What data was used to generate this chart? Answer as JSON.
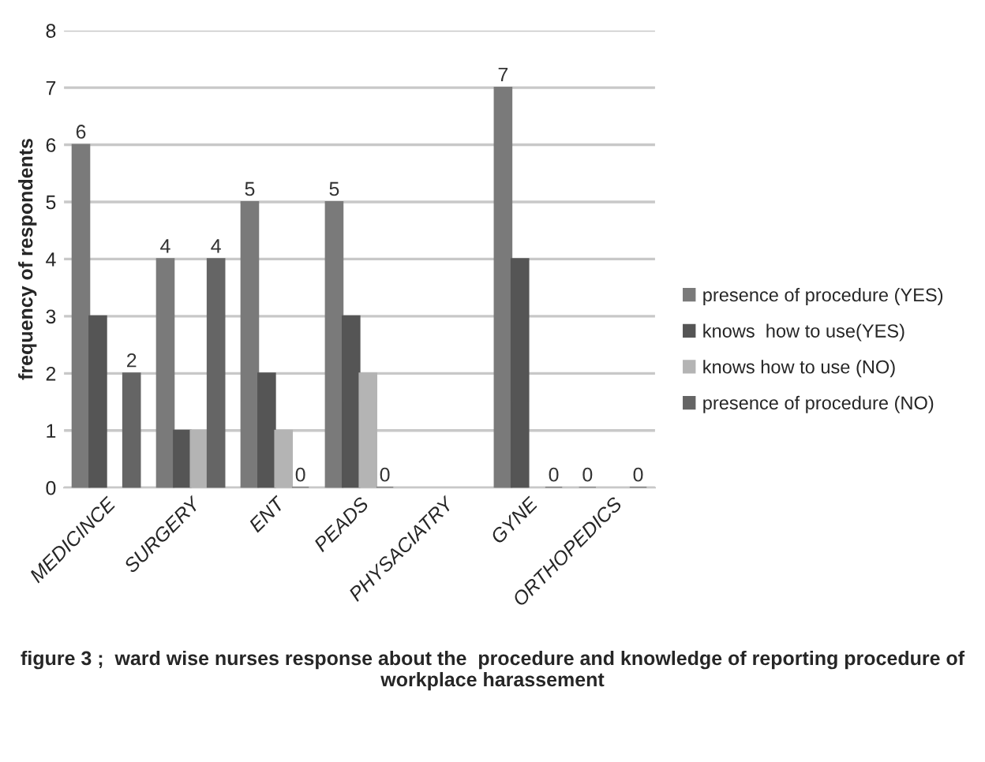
{
  "chart_data": {
    "type": "bar",
    "ylabel": "frequency of respondents",
    "categories": [
      "MEDICINCE",
      "SURGERY",
      "ENT",
      "PEADS",
      "PHYSACIATRY",
      "GYNE",
      "ORTHOPEDICS"
    ],
    "series": [
      {
        "name": "presence of procedure (YES)",
        "color": "#7a7a7a",
        "values": [
          6,
          4,
          5,
          5,
          null,
          7,
          0
        ],
        "value_labels": [
          "6",
          "4",
          "5",
          "5",
          null,
          "7",
          "0"
        ]
      },
      {
        "name": "knows  how to use(YES)",
        "color": "#555555",
        "values": [
          3,
          1,
          2,
          3,
          null,
          4,
          null
        ]
      },
      {
        "name": "knows how to use (NO)",
        "color": "#b4b4b4",
        "values": [
          null,
          1,
          1,
          2,
          null,
          null,
          null
        ]
      },
      {
        "name": "presence of procedure (NO)",
        "color": "#656565",
        "values": [
          2,
          4,
          0,
          0,
          null,
          0,
          0
        ],
        "value_labels": [
          "2",
          "4",
          "0",
          "0",
          null,
          "0",
          "0"
        ]
      }
    ],
    "ylim": [
      0,
      8
    ],
    "yticks": [
      0,
      1,
      2,
      3,
      4,
      5,
      6,
      7,
      8
    ],
    "grid": "y",
    "legend": "right",
    "annotations": [
      "figure 3 ;  ward wise nurses response about the  procedure and knowledge of reporting procedure of workplace harassement"
    ]
  }
}
